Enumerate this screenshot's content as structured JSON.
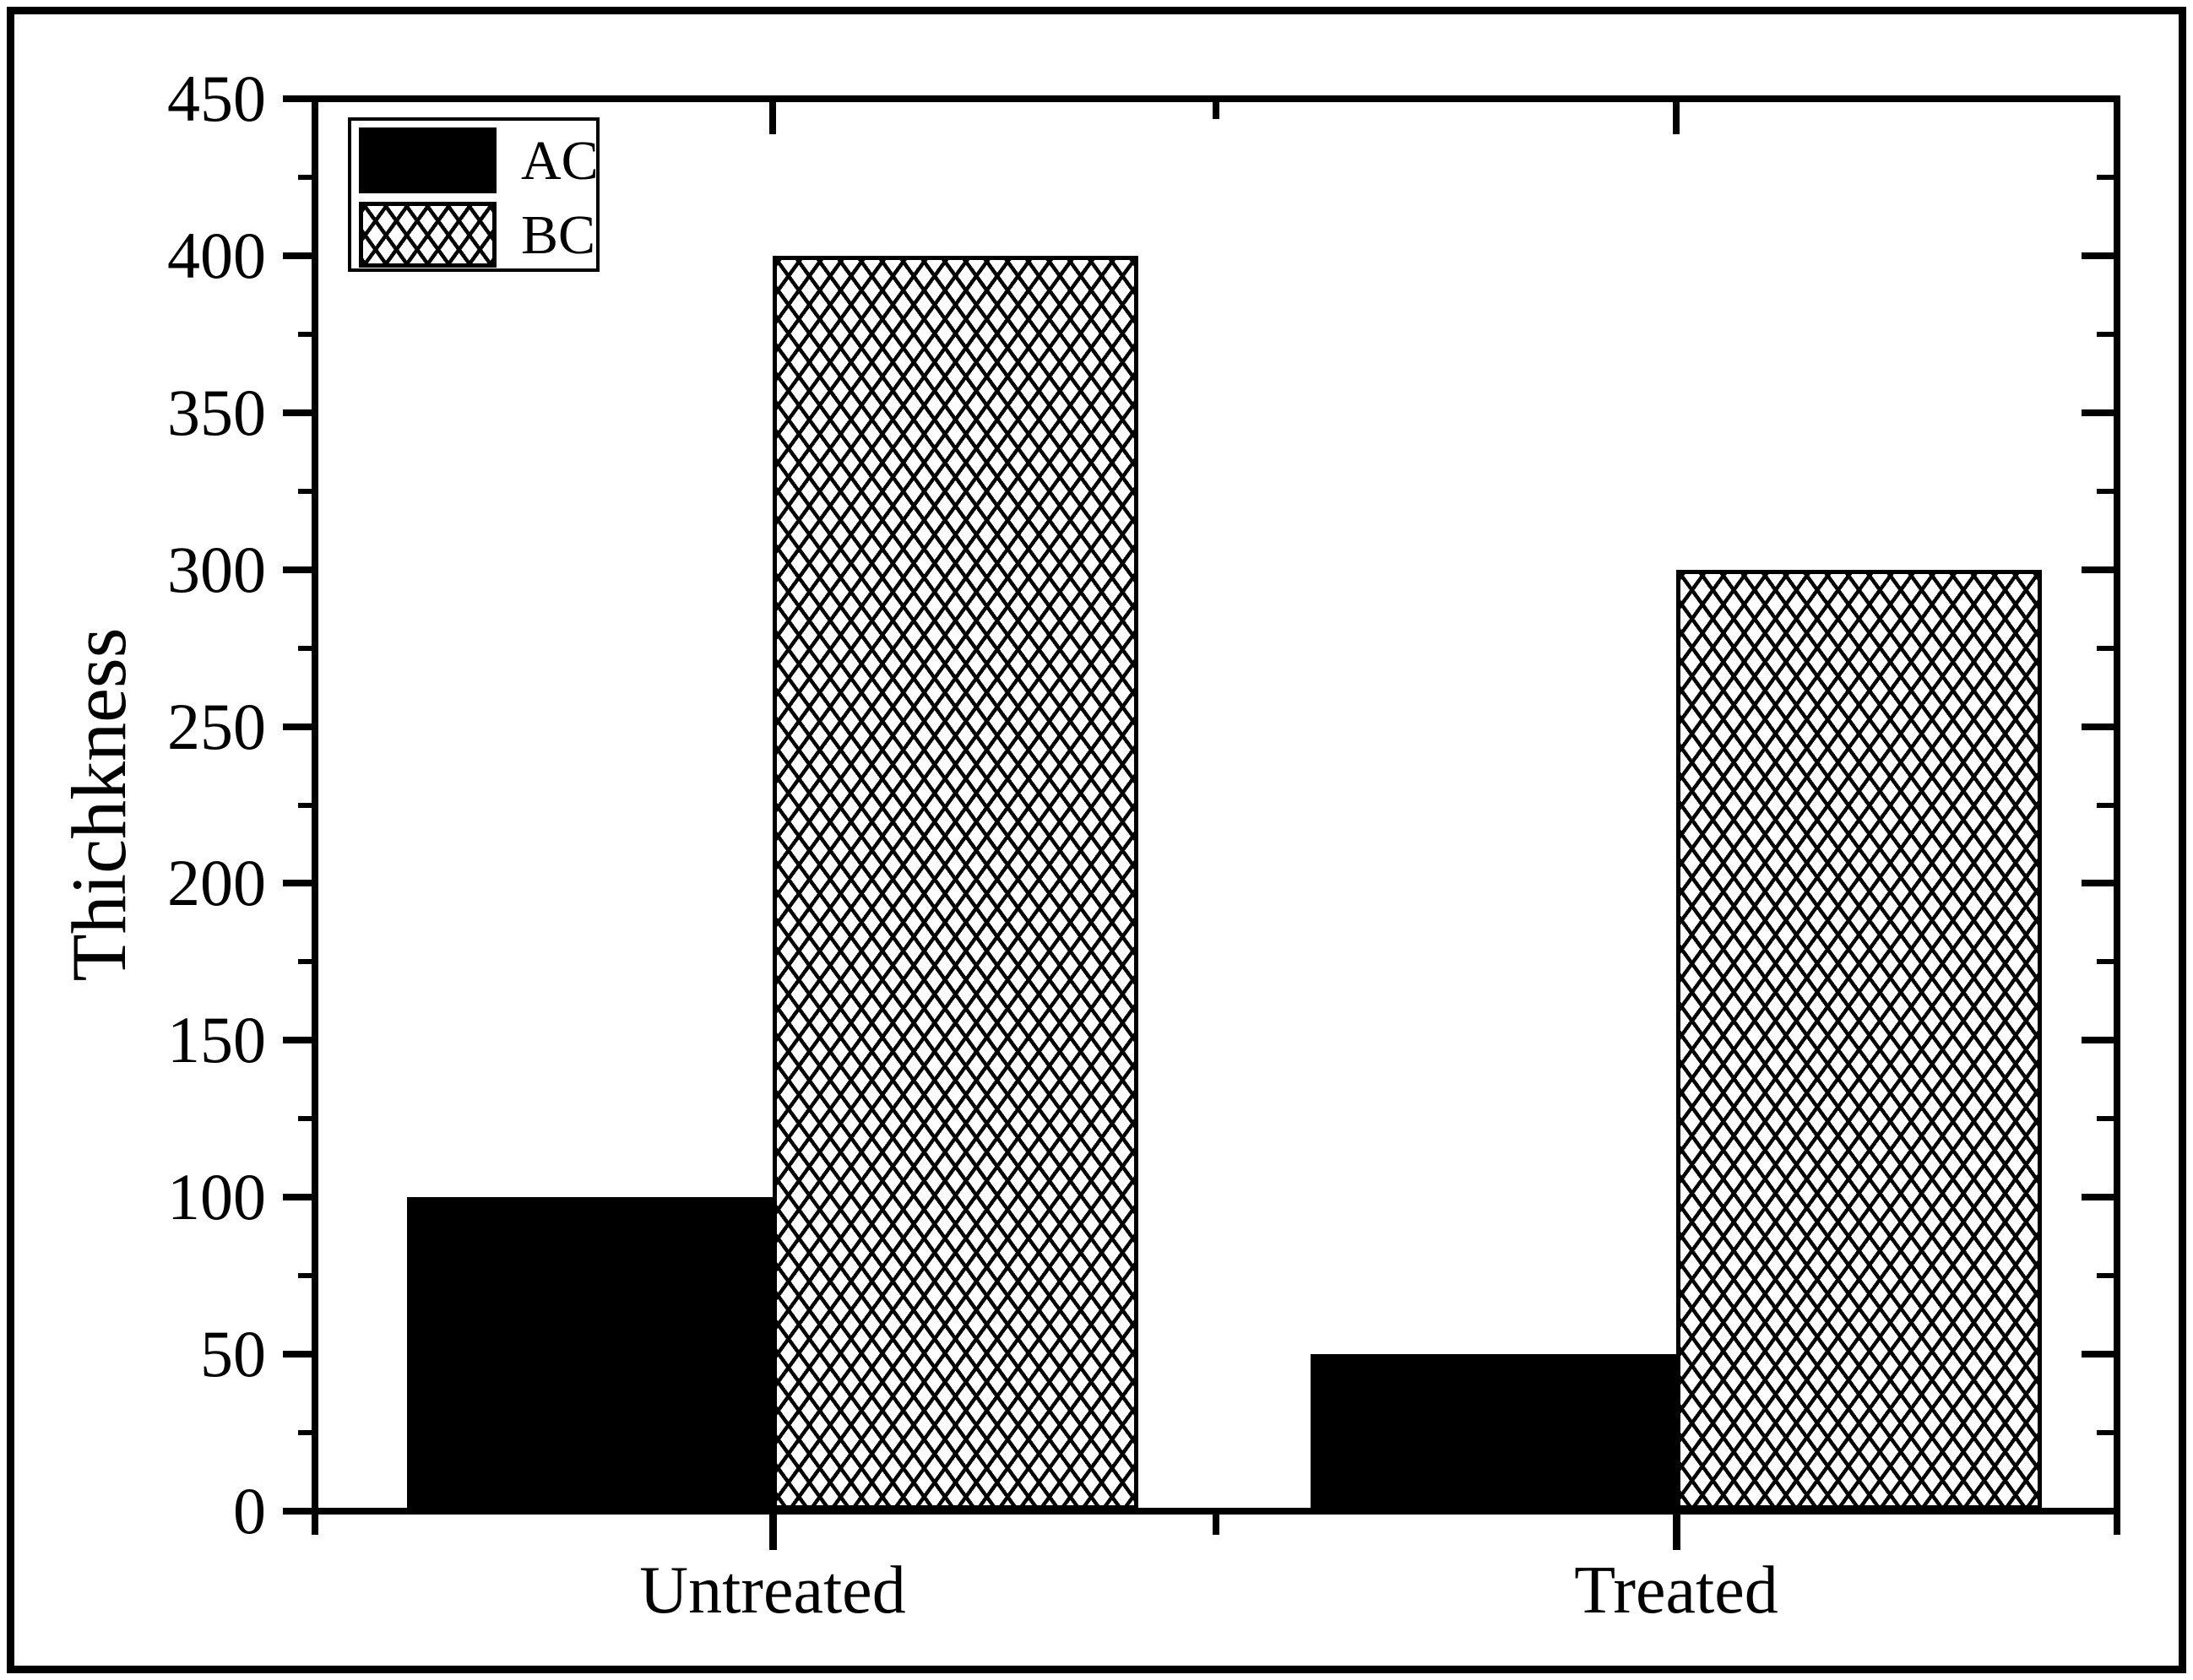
{
  "figure": {
    "background": "#ffffff",
    "frame_color": "#000000",
    "accent_color": "#000000"
  },
  "chart_data": {
    "type": "bar",
    "title": "",
    "categories": [
      "Untreated",
      "Treated"
    ],
    "series": [
      {
        "name": "AC",
        "fill": "solid",
        "color": "#000000",
        "values": [
          100,
          50
        ]
      },
      {
        "name": "BC",
        "fill": "crosshatch",
        "color": "#000000",
        "values": [
          400,
          300
        ]
      }
    ],
    "xlabel": "",
    "ylabel": "Thichkness",
    "ylim": [
      0,
      450
    ],
    "y_major_ticks": [
      0,
      50,
      100,
      150,
      200,
      250,
      300,
      350,
      400,
      450
    ],
    "y_minor_tick_step": 25,
    "x_tick_labels": [
      "Untreated",
      "Treated"
    ],
    "legend": {
      "position": "top-left",
      "entries": [
        "AC",
        "BC"
      ]
    },
    "grid": false
  }
}
